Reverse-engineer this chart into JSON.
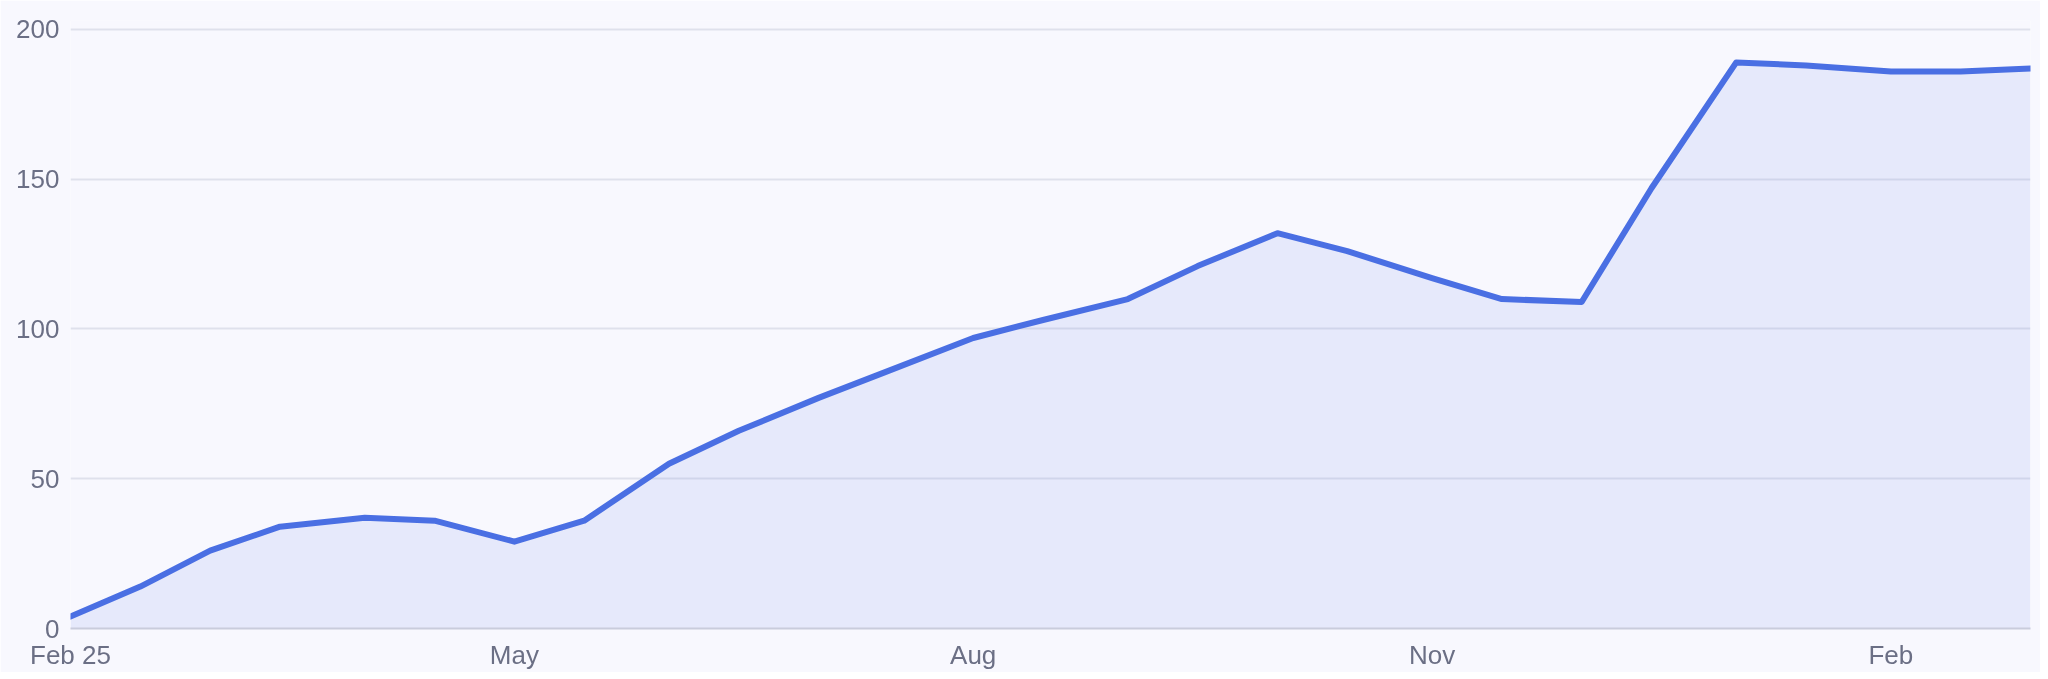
{
  "chart_data": {
    "type": "area",
    "x": [
      "2025-02-01",
      "2025-02-15",
      "2025-03-01",
      "2025-03-15",
      "2025-04-01",
      "2025-04-15",
      "2025-05-01",
      "2025-05-15",
      "2025-06-01",
      "2025-06-15",
      "2025-07-01",
      "2025-07-15",
      "2025-08-01",
      "2025-08-15",
      "2025-09-01",
      "2025-09-15",
      "2025-10-01",
      "2025-10-15",
      "2025-11-01",
      "2025-11-15",
      "2025-12-01",
      "2025-12-15",
      "2026-01-01",
      "2026-01-15",
      "2026-02-01",
      "2026-02-15",
      "2026-03-01"
    ],
    "series": [
      {
        "color": "#4a6fe3",
        "values": [
          4,
          14,
          26,
          34,
          37,
          36,
          29,
          36,
          55,
          66,
          77,
          86,
          97,
          103,
          110,
          121,
          132,
          126,
          117,
          110,
          109,
          147,
          189,
          188,
          186,
          186,
          187
        ]
      }
    ],
    "xlim": [
      "2025-02-01",
      "2026-03-01"
    ],
    "xticks": [
      {
        "value": "2025-02-01",
        "label": "Feb 25"
      },
      {
        "value": "2025-05-01",
        "label": "May"
      },
      {
        "value": "2025-08-01",
        "label": "Aug"
      },
      {
        "value": "2025-11-01",
        "label": "Nov"
      },
      {
        "value": "2026-02-01",
        "label": "Feb"
      }
    ],
    "ylim": [
      0,
      203
    ],
    "yticks": [
      0,
      50,
      100,
      150,
      200
    ],
    "grid": "y",
    "marker": "none",
    "line_style": "solid"
  }
}
